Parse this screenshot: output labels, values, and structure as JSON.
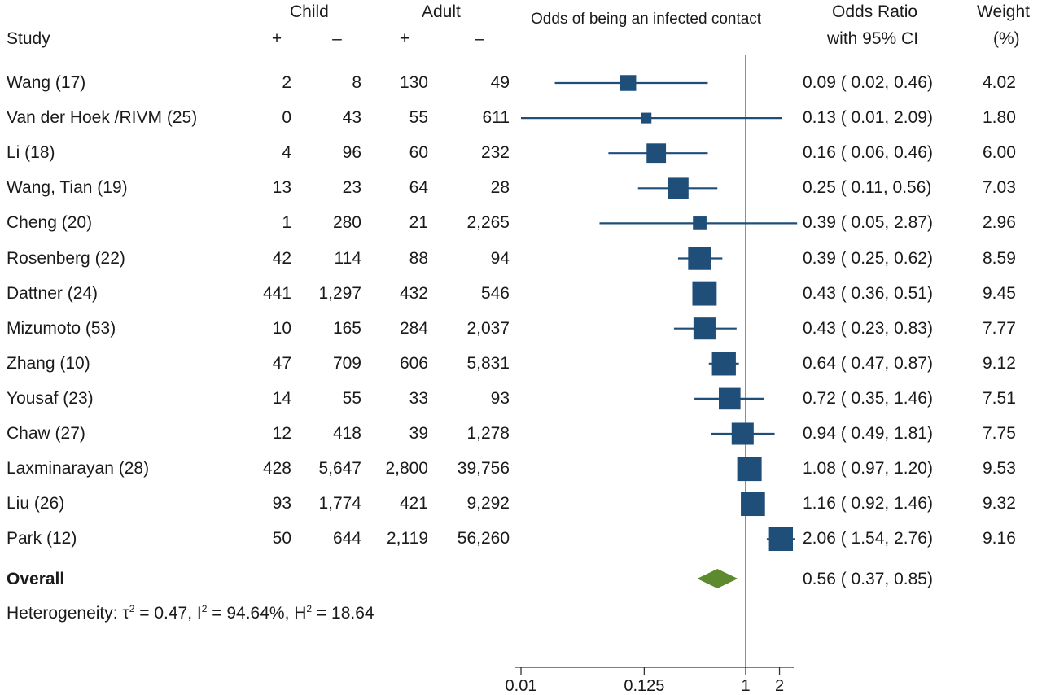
{
  "headers": {
    "study": "Study",
    "child": "Child",
    "adult": "Adult",
    "plus": "+",
    "minus": "–",
    "plot_title": "Odds of being an infected contact",
    "or_line1": "Odds Ratio",
    "or_line2": "with 95% CI",
    "weight_line1": "Weight",
    "weight_line2": "(%)"
  },
  "overall": {
    "label": "Overall",
    "ci_text": "0.56 ( 0.37,  0.85)"
  },
  "heterogeneity": {
    "prefix": "Heterogeneity: ",
    "tau_symbol": "τ",
    "sup1": "2",
    "tau_value": " = 0.47, I",
    "sup2": "2",
    "i_value": " = 94.64%, H",
    "sup3": "2",
    "h_value": " = 18.64"
  },
  "colors": {
    "marker": "#1f4e79",
    "diamond": "#5d8a2e",
    "axis": "#333333",
    "refline": "#555555"
  },
  "chart_data": {
    "type": "forest",
    "x_scale": "log",
    "xlim": [
      0.01,
      2.87
    ],
    "x_ticks": [
      0.01,
      0.125,
      1,
      2
    ],
    "x_tick_labels": [
      "0.01",
      "0.125",
      "1",
      "2"
    ],
    "reference_line": 1,
    "studies": [
      {
        "name": "Wang (17)",
        "child_pos": "2",
        "child_neg": "8",
        "adult_pos": "130",
        "adult_neg": "49",
        "or": 0.09,
        "lo": 0.02,
        "hi": 0.46,
        "ci_text": "0.09 ( 0.02,  0.46)",
        "weight": "4.02",
        "w": 4.02
      },
      {
        "name": "Van der Hoek /RIVM (25)",
        "child_pos": "0",
        "child_neg": "43",
        "adult_pos": "55",
        "adult_neg": "611",
        "or": 0.13,
        "lo": 0.01,
        "hi": 2.09,
        "ci_text": "0.13 ( 0.01,  2.09)",
        "weight": "1.80",
        "w": 1.8
      },
      {
        "name": "Li (18)",
        "child_pos": "4",
        "child_neg": "96",
        "adult_pos": "60",
        "adult_neg": "232",
        "or": 0.16,
        "lo": 0.06,
        "hi": 0.46,
        "ci_text": "0.16 ( 0.06,  0.46)",
        "weight": "6.00",
        "w": 6.0
      },
      {
        "name": "Wang, Tian (19)",
        "child_pos": "13",
        "child_neg": "23",
        "adult_pos": "64",
        "adult_neg": "28",
        "or": 0.25,
        "lo": 0.11,
        "hi": 0.56,
        "ci_text": "0.25 ( 0.11,  0.56)",
        "weight": "7.03",
        "w": 7.03
      },
      {
        "name": "Cheng (20)",
        "child_pos": "1",
        "child_neg": "280",
        "adult_pos": "21",
        "adult_neg": "2,265",
        "or": 0.39,
        "lo": 0.05,
        "hi": 2.87,
        "ci_text": "0.39 ( 0.05,  2.87)",
        "weight": "2.96",
        "w": 2.96
      },
      {
        "name": "Rosenberg (22)",
        "child_pos": "42",
        "child_neg": "114",
        "adult_pos": "88",
        "adult_neg": "94",
        "or": 0.39,
        "lo": 0.25,
        "hi": 0.62,
        "ci_text": "0.39 ( 0.25,  0.62)",
        "weight": "8.59",
        "w": 8.59
      },
      {
        "name": "Dattner (24)",
        "child_pos": "441",
        "child_neg": "1,297",
        "adult_pos": "432",
        "adult_neg": "546",
        "or": 0.43,
        "lo": 0.36,
        "hi": 0.51,
        "ci_text": "0.43 ( 0.36,  0.51)",
        "weight": "9.45",
        "w": 9.45
      },
      {
        "name": "Mizumoto (53)",
        "child_pos": "10",
        "child_neg": "165",
        "adult_pos": "284",
        "adult_neg": "2,037",
        "or": 0.43,
        "lo": 0.23,
        "hi": 0.83,
        "ci_text": "0.43 ( 0.23,  0.83)",
        "weight": "7.77",
        "w": 7.77
      },
      {
        "name": "Zhang (10)",
        "child_pos": "47",
        "child_neg": "709",
        "adult_pos": "606",
        "adult_neg": "5,831",
        "or": 0.64,
        "lo": 0.47,
        "hi": 0.87,
        "ci_text": "0.64 ( 0.47,  0.87)",
        "weight": "9.12",
        "w": 9.12
      },
      {
        "name": "Yousaf (23)",
        "child_pos": "14",
        "child_neg": "55",
        "adult_pos": "33",
        "adult_neg": "93",
        "or": 0.72,
        "lo": 0.35,
        "hi": 1.46,
        "ci_text": "0.72 ( 0.35,  1.46)",
        "weight": "7.51",
        "w": 7.51
      },
      {
        "name": "Chaw (27)",
        "child_pos": "12",
        "child_neg": "418",
        "adult_pos": "39",
        "adult_neg": "1,278",
        "or": 0.94,
        "lo": 0.49,
        "hi": 1.81,
        "ci_text": "0.94 ( 0.49,  1.81)",
        "weight": "7.75",
        "w": 7.75
      },
      {
        "name": "Laxminarayan (28)",
        "child_pos": "428",
        "child_neg": "5,647",
        "adult_pos": "2,800",
        "adult_neg": "39,756",
        "or": 1.08,
        "lo": 0.97,
        "hi": 1.2,
        "ci_text": "1.08 ( 0.97,  1.20)",
        "weight": "9.53",
        "w": 9.53
      },
      {
        "name": "Liu (26)",
        "child_pos": "93",
        "child_neg": "1,774",
        "adult_pos": "421",
        "adult_neg": "9,292",
        "or": 1.16,
        "lo": 0.92,
        "hi": 1.46,
        "ci_text": "1.16 ( 0.92,  1.46)",
        "weight": "9.32",
        "w": 9.32
      },
      {
        "name": "Park (12)",
        "child_pos": "50",
        "child_neg": "644",
        "adult_pos": "2,119",
        "adult_neg": "56,260",
        "or": 2.06,
        "lo": 1.54,
        "hi": 2.76,
        "ci_text": "2.06 ( 1.54,  2.76)",
        "weight": "9.16",
        "w": 9.16
      }
    ],
    "overall": {
      "or": 0.56,
      "lo": 0.37,
      "hi": 0.85
    }
  }
}
